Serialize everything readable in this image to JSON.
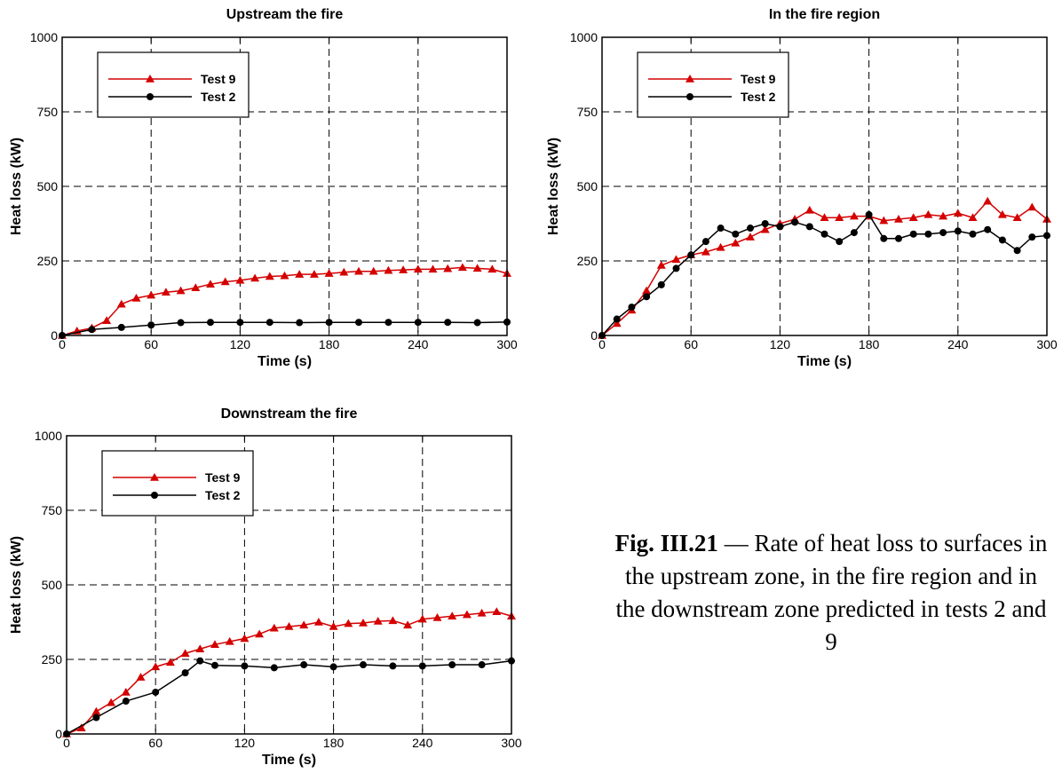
{
  "caption": {
    "label": "Fig. III.21",
    "text": " — Rate of heat loss to surfaces in the upstream zone, in the fire region and in the downstream zone predicted in tests 2 and 9"
  },
  "colors": {
    "test9": "#d40000",
    "test2": "#000000"
  },
  "chart_data": [
    {
      "type": "line",
      "title": "Upstream the fire",
      "xlabel": "Time (s)",
      "ylabel": "Heat loss (kW)",
      "xlim": [
        0,
        300
      ],
      "ylim": [
        0,
        1000
      ],
      "xticks": [
        "0",
        "60",
        "120",
        "180",
        "240",
        "300"
      ],
      "yticks": [
        "0",
        "250",
        "500",
        "750",
        "1000"
      ],
      "grid": true,
      "legend_position": "top-left",
      "series": [
        {
          "name": "Test 9",
          "marker": "triangle",
          "x": [
            0,
            10,
            20,
            30,
            40,
            50,
            60,
            70,
            80,
            90,
            100,
            110,
            120,
            130,
            140,
            150,
            160,
            170,
            180,
            190,
            200,
            210,
            220,
            230,
            240,
            250,
            260,
            270,
            280,
            290,
            300
          ],
          "y": [
            0,
            15,
            25,
            50,
            105,
            125,
            135,
            145,
            150,
            160,
            172,
            180,
            185,
            192,
            198,
            200,
            205,
            205,
            208,
            212,
            215,
            215,
            218,
            220,
            222,
            222,
            224,
            228,
            225,
            222,
            208
          ]
        },
        {
          "name": "Test 2",
          "marker": "circle",
          "x": [
            0,
            20,
            40,
            60,
            80,
            100,
            120,
            140,
            160,
            180,
            200,
            220,
            240,
            260,
            280,
            300
          ],
          "y": [
            0,
            20,
            27,
            35,
            43,
            44,
            44,
            44,
            43,
            44,
            44,
            44,
            44,
            44,
            43,
            45
          ]
        }
      ]
    },
    {
      "type": "line",
      "title": "In the fire region",
      "xlabel": "Time (s)",
      "ylabel": "Heat loss (kW)",
      "xlim": [
        0,
        300
      ],
      "ylim": [
        0,
        1000
      ],
      "xticks": [
        "0",
        "60",
        "120",
        "180",
        "240",
        "300"
      ],
      "yticks": [
        "0",
        "250",
        "500",
        "750",
        "1000"
      ],
      "grid": true,
      "legend_position": "top-left",
      "series": [
        {
          "name": "Test 9",
          "marker": "triangle",
          "x": [
            0,
            10,
            20,
            30,
            40,
            50,
            60,
            70,
            80,
            90,
            100,
            110,
            120,
            130,
            140,
            150,
            160,
            170,
            180,
            190,
            200,
            210,
            220,
            230,
            240,
            250,
            260,
            270,
            280,
            290,
            300
          ],
          "y": [
            0,
            40,
            85,
            150,
            235,
            255,
            270,
            280,
            295,
            310,
            330,
            355,
            375,
            390,
            420,
            395,
            395,
            400,
            400,
            385,
            390,
            395,
            405,
            400,
            410,
            395,
            450,
            405,
            395,
            430,
            390
          ]
        },
        {
          "name": "Test 2",
          "marker": "circle",
          "x": [
            0,
            10,
            20,
            30,
            40,
            50,
            60,
            70,
            80,
            90,
            100,
            110,
            120,
            130,
            140,
            150,
            160,
            170,
            180,
            190,
            200,
            210,
            220,
            230,
            240,
            250,
            260,
            270,
            280,
            290,
            300
          ],
          "y": [
            0,
            55,
            95,
            130,
            170,
            225,
            270,
            315,
            360,
            340,
            360,
            375,
            365,
            380,
            365,
            340,
            315,
            345,
            405,
            325,
            325,
            340,
            340,
            345,
            350,
            340,
            355,
            320,
            285,
            330,
            335
          ]
        }
      ]
    },
    {
      "type": "line",
      "title": "Downstream the fire",
      "xlabel": "Time (s)",
      "ylabel": "Heat loss (kW)",
      "xlim": [
        0,
        300
      ],
      "ylim": [
        0,
        1000
      ],
      "xticks": [
        "0",
        "60",
        "120",
        "180",
        "240",
        "300"
      ],
      "yticks": [
        "0",
        "250",
        "500",
        "750",
        "1000"
      ],
      "grid": true,
      "legend_position": "top-left",
      "series": [
        {
          "name": "Test 9",
          "marker": "triangle",
          "x": [
            0,
            10,
            20,
            30,
            40,
            50,
            60,
            70,
            80,
            90,
            100,
            110,
            120,
            130,
            140,
            150,
            160,
            170,
            180,
            190,
            200,
            210,
            220,
            230,
            240,
            250,
            260,
            270,
            280,
            290,
            300
          ],
          "y": [
            0,
            20,
            75,
            105,
            140,
            190,
            225,
            240,
            270,
            285,
            300,
            310,
            320,
            335,
            355,
            360,
            365,
            375,
            360,
            370,
            372,
            378,
            380,
            365,
            385,
            390,
            395,
            400,
            405,
            410,
            395
          ]
        },
        {
          "name": "Test 2",
          "marker": "circle",
          "x": [
            0,
            20,
            40,
            60,
            80,
            90,
            100,
            120,
            140,
            160,
            180,
            200,
            220,
            240,
            260,
            280,
            300
          ],
          "y": [
            0,
            55,
            110,
            140,
            205,
            245,
            230,
            228,
            222,
            232,
            225,
            232,
            228,
            228,
            232,
            232,
            245
          ]
        }
      ]
    }
  ]
}
